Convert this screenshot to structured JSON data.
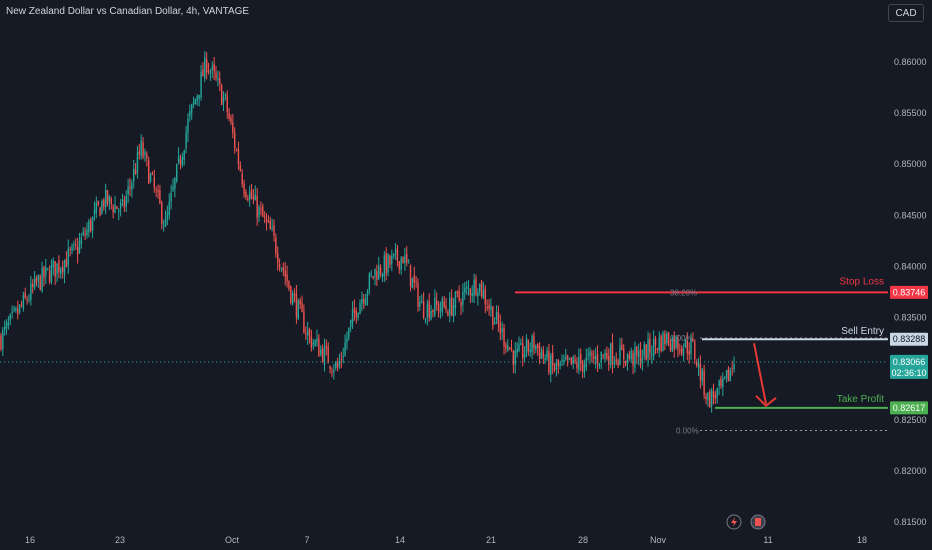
{
  "header": {
    "title": "New Zealand Dollar vs Canadian Dollar, 4h, VANTAGE",
    "currency_button": "CAD"
  },
  "colors": {
    "background": "#161a25",
    "up": "#26a69a",
    "down": "#ef5350",
    "stop_loss": "#f23645",
    "sell_entry": "#c8d6e5",
    "take_profit": "#4caf50",
    "current_price": "#26a69a",
    "arrow": "#e53935"
  },
  "chart_data": {
    "type": "candlestick",
    "symbol": "NZDCAD",
    "timeframe": "4h",
    "x_ticks": [
      "16",
      "23",
      "Oct",
      "7",
      "14",
      "21",
      "28",
      "Nov",
      "11",
      "18"
    ],
    "y_ticks": [
      "0.86000",
      "0.85500",
      "0.85000",
      "0.84500",
      "0.84000",
      "0.83500",
      "0.83000",
      "0.82500",
      "0.82000",
      "0.81500"
    ],
    "y_tick_values": [
      0.86,
      0.855,
      0.85,
      0.845,
      0.84,
      0.835,
      0.83,
      0.825,
      0.82,
      0.815
    ],
    "ylim": [
      0.8143,
      0.8645
    ],
    "approx_close_path": [
      {
        "bar": 0,
        "close": 0.833
      },
      {
        "bar": 20,
        "close": 0.8385
      },
      {
        "bar": 40,
        "close": 0.8415
      },
      {
        "bar": 55,
        "close": 0.8465
      },
      {
        "bar": 65,
        "close": 0.8455
      },
      {
        "bar": 75,
        "close": 0.8515
      },
      {
        "bar": 88,
        "close": 0.844
      },
      {
        "bar": 100,
        "close": 0.854
      },
      {
        "bar": 110,
        "close": 0.86
      },
      {
        "bar": 120,
        "close": 0.856
      },
      {
        "bar": 130,
        "close": 0.848
      },
      {
        "bar": 145,
        "close": 0.843
      },
      {
        "bar": 155,
        "close": 0.8375
      },
      {
        "bar": 165,
        "close": 0.833
      },
      {
        "bar": 180,
        "close": 0.83
      },
      {
        "bar": 190,
        "close": 0.836
      },
      {
        "bar": 200,
        "close": 0.8395
      },
      {
        "bar": 215,
        "close": 0.841
      },
      {
        "bar": 225,
        "close": 0.836
      },
      {
        "bar": 240,
        "close": 0.836
      },
      {
        "bar": 255,
        "close": 0.8385
      },
      {
        "bar": 265,
        "close": 0.8345
      },
      {
        "bar": 275,
        "close": 0.831
      },
      {
        "bar": 285,
        "close": 0.8325
      },
      {
        "bar": 295,
        "close": 0.83
      },
      {
        "bar": 310,
        "close": 0.8305
      },
      {
        "bar": 325,
        "close": 0.8315
      },
      {
        "bar": 340,
        "close": 0.831
      },
      {
        "bar": 355,
        "close": 0.833
      },
      {
        "bar": 370,
        "close": 0.832
      },
      {
        "bar": 378,
        "close": 0.827
      },
      {
        "bar": 386,
        "close": 0.828
      },
      {
        "bar": 392,
        "close": 0.8307
      }
    ],
    "levels": {
      "stop_loss": {
        "label": "Stop Loss",
        "price": 0.83746,
        "tag": "0.83746"
      },
      "sell_entry": {
        "label": "Sell Entry",
        "price": 0.83288,
        "tag": "0.83288"
      },
      "take_profit": {
        "label": "Take Profit",
        "price": 0.82617,
        "tag": "0.82617"
      }
    },
    "current_price": {
      "price": 0.83066,
      "tag": "0.83066",
      "countdown": "02:36:10"
    },
    "fib": [
      {
        "label": "38.20%",
        "price": 0.83746
      },
      {
        "label": "0.00%",
        "price": 0.833
      },
      {
        "label": "0.00%",
        "price": 0.82395
      }
    ]
  }
}
